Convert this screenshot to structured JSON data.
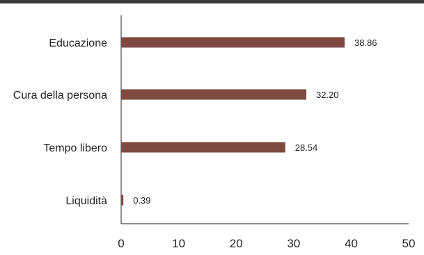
{
  "chart_data": {
    "type": "bar",
    "orientation": "horizontal",
    "categories": [
      "Educazione",
      "Cura della persona",
      "Tempo libero",
      "Liquidità"
    ],
    "values": [
      38.86,
      32.2,
      28.54,
      0.39
    ],
    "value_labels": [
      "38.86",
      "32.20",
      "28.54",
      "0.39"
    ],
    "xlim": [
      0,
      50
    ],
    "xticks": [
      "0",
      "10",
      "20",
      "30",
      "40",
      "50"
    ],
    "title": "",
    "xlabel": "",
    "ylabel": "",
    "grid": false,
    "bar_color": "#7f4a42",
    "topbar_color": "#3a3a3a"
  }
}
